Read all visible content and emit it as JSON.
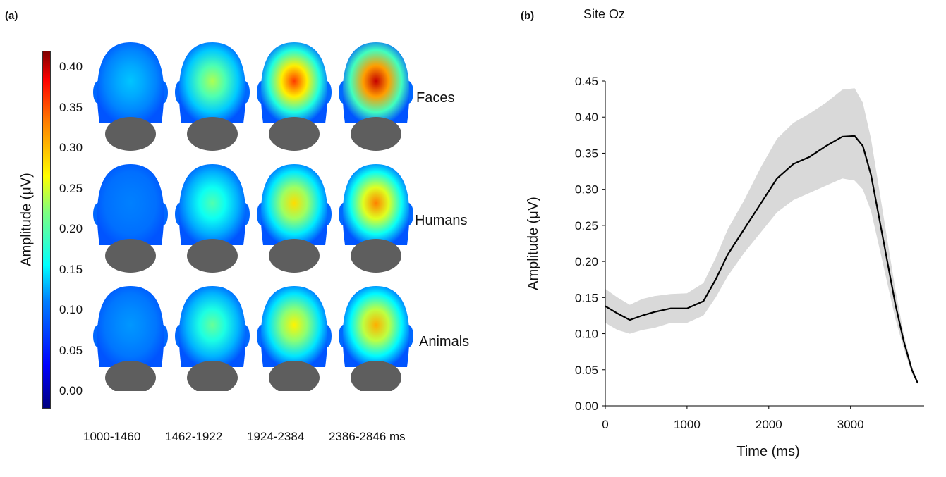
{
  "panel_a": {
    "label": "(a)",
    "colorbar": {
      "title": "Amplitude (μV)",
      "ticks": [
        "0.40",
        "0.35",
        "0.30",
        "0.25",
        "0.20",
        "0.15",
        "0.10",
        "0.05",
        "0.00"
      ],
      "range": [
        -0.02,
        0.42
      ],
      "colormap": "jet"
    },
    "conditions": [
      "Faces",
      "Humans",
      "Animals"
    ],
    "time_windows": [
      "1000-1460",
      "1462-1922",
      "1924-2384",
      "2386-2846 ms"
    ],
    "peak_amplitudes": [
      [
        0.12,
        0.22,
        0.34,
        0.39
      ],
      [
        0.09,
        0.18,
        0.27,
        0.31
      ],
      [
        0.1,
        0.19,
        0.26,
        0.29
      ]
    ]
  },
  "panel_b": {
    "label": "(b)",
    "site_title": "Site Oz",
    "ylabel": "Amplitude (μV)",
    "xlabel": "Time (ms)"
  },
  "chart_data": {
    "type": "line",
    "title": "Site Oz",
    "xlabel": "Time (ms)",
    "ylabel": "Amplitude (μV)",
    "xlim": [
      0,
      3900
    ],
    "ylim": [
      0,
      0.45
    ],
    "x_ticks": [
      "0",
      "1000",
      "2000",
      "3000"
    ],
    "x_tick_values": [
      0,
      1000,
      2000,
      3000
    ],
    "y_ticks": [
      "0.00",
      "0.05",
      "0.10",
      "0.15",
      "0.20",
      "0.25",
      "0.30",
      "0.35",
      "0.40",
      "0.45"
    ],
    "y_tick_values": [
      0,
      0.05,
      0.1,
      0.15,
      0.2,
      0.25,
      0.3,
      0.35,
      0.4,
      0.45
    ],
    "grid": false,
    "line_color": "#000000",
    "band_color": "#d9d9d9",
    "x": [
      0,
      150,
      300,
      450,
      600,
      800,
      1000,
      1200,
      1350,
      1500,
      1700,
      1900,
      2100,
      2300,
      2500,
      2700,
      2900,
      3050,
      3150,
      3250,
      3350,
      3450,
      3550,
      3650,
      3750,
      3820
    ],
    "mean": [
      0.138,
      0.128,
      0.119,
      0.125,
      0.13,
      0.135,
      0.135,
      0.145,
      0.175,
      0.21,
      0.245,
      0.28,
      0.315,
      0.335,
      0.345,
      0.36,
      0.373,
      0.374,
      0.36,
      0.32,
      0.26,
      0.2,
      0.14,
      0.09,
      0.05,
      0.032
    ],
    "upper": [
      0.162,
      0.15,
      0.14,
      0.148,
      0.152,
      0.155,
      0.156,
      0.17,
      0.205,
      0.245,
      0.285,
      0.33,
      0.37,
      0.392,
      0.405,
      0.42,
      0.438,
      0.44,
      0.42,
      0.37,
      0.3,
      0.23,
      0.16,
      0.1,
      0.055,
      0.034
    ],
    "lower": [
      0.115,
      0.105,
      0.1,
      0.105,
      0.108,
      0.115,
      0.115,
      0.125,
      0.15,
      0.18,
      0.212,
      0.24,
      0.268,
      0.285,
      0.295,
      0.305,
      0.315,
      0.312,
      0.3,
      0.27,
      0.22,
      0.17,
      0.12,
      0.08,
      0.045,
      0.03
    ]
  }
}
